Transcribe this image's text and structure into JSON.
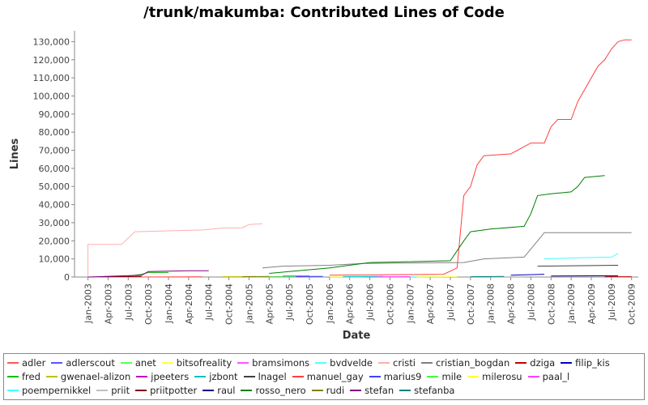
{
  "chart_data": {
    "type": "line",
    "title": "/trunk/makumba: Contributed Lines of Code",
    "x_label": "Date",
    "y_label": "Lines",
    "xlim": [
      "2002-11",
      "2009-11"
    ],
    "xticks": [
      {
        "value": "2003-01",
        "label": "Jan-2003"
      },
      {
        "value": "2003-04",
        "label": "Apr-2003"
      },
      {
        "value": "2003-07",
        "label": "Jul-2003"
      },
      {
        "value": "2003-10",
        "label": "Oct-2003"
      },
      {
        "value": "2004-01",
        "label": "Jan-2004"
      },
      {
        "value": "2004-04",
        "label": "Apr-2004"
      },
      {
        "value": "2004-07",
        "label": "Jul-2004"
      },
      {
        "value": "2004-10",
        "label": "Oct-2004"
      },
      {
        "value": "2005-01",
        "label": "Jan-2005"
      },
      {
        "value": "2005-04",
        "label": "Apr-2005"
      },
      {
        "value": "2005-07",
        "label": "Jul-2005"
      },
      {
        "value": "2005-10",
        "label": "Oct-2005"
      },
      {
        "value": "2006-01",
        "label": "Jan-2006"
      },
      {
        "value": "2006-04",
        "label": "Apr-2006"
      },
      {
        "value": "2006-07",
        "label": "Jul-2006"
      },
      {
        "value": "2006-10",
        "label": "Oct-2006"
      },
      {
        "value": "2007-01",
        "label": "Jan-2007"
      },
      {
        "value": "2007-04",
        "label": "Apr-2007"
      },
      {
        "value": "2007-07",
        "label": "Jul-2007"
      },
      {
        "value": "2007-10",
        "label": "Oct-2007"
      },
      {
        "value": "2008-01",
        "label": "Jan-2008"
      },
      {
        "value": "2008-04",
        "label": "Apr-2008"
      },
      {
        "value": "2008-07",
        "label": "Jul-2008"
      },
      {
        "value": "2008-10",
        "label": "Oct-2008"
      },
      {
        "value": "2009-01",
        "label": "Jan-2009"
      },
      {
        "value": "2009-04",
        "label": "Apr-2009"
      },
      {
        "value": "2009-07",
        "label": "Jul-2009"
      },
      {
        "value": "2009-10",
        "label": "Oct-2009"
      }
    ],
    "ylim": [
      0,
      136000
    ],
    "yticks": [
      0,
      {
        "value": 10000,
        "label": "10,000"
      },
      {
        "value": 20000,
        "label": "20,000"
      },
      {
        "value": 30000,
        "label": "30,000"
      },
      {
        "value": 40000,
        "label": "40,000"
      },
      {
        "value": 50000,
        "label": "50,000"
      },
      {
        "value": 60000,
        "label": "60,000"
      },
      {
        "value": 70000,
        "label": "70,000"
      },
      {
        "value": 80000,
        "label": "80,000"
      },
      {
        "value": 90000,
        "label": "90,000"
      },
      {
        "value": 100000,
        "label": "100,000"
      },
      {
        "value": 110000,
        "label": "110,000"
      },
      {
        "value": 120000,
        "label": "120,000"
      },
      {
        "value": 130000,
        "label": "130,000"
      }
    ],
    "grid": false,
    "legend": "bottom",
    "series": [
      {
        "name": "adler",
        "color": "#ff5555",
        "x": [
          "2003-06",
          "2004-06"
        ],
        "values": [
          0,
          200
        ]
      },
      {
        "name": "adlerscout",
        "color": "#5555ff",
        "x": [
          "2005-06",
          "2005-10"
        ],
        "values": [
          500,
          600
        ]
      },
      {
        "name": "anet",
        "color": "#55ff55",
        "x": [
          "2004-10",
          "2005-03"
        ],
        "values": [
          100,
          200
        ]
      },
      {
        "name": "bitsofreality",
        "color": "#ffff55",
        "x": [
          "2006-01",
          "2006-06"
        ],
        "values": [
          100,
          200
        ]
      },
      {
        "name": "bramsimons",
        "color": "#ff55ff",
        "x": [
          "2006-06",
          "2007-01"
        ],
        "values": [
          100,
          200
        ]
      },
      {
        "name": "bvdvelde",
        "color": "#55ffff",
        "x": [
          "2007-01",
          "2007-06"
        ],
        "values": [
          100,
          200
        ]
      },
      {
        "name": "cristi",
        "color": "#ffafaf",
        "x": [
          "2003-01",
          "2003-01",
          "2003-06",
          "2003-07",
          "2003-08",
          "2004-01",
          "2004-06",
          "2004-09",
          "2004-12",
          "2005-01",
          "2005-03"
        ],
        "values": [
          0,
          18000,
          18000,
          21500,
          25000,
          25500,
          26000,
          27000,
          27200,
          29000,
          29500
        ]
      },
      {
        "name": "cristian_bogdan",
        "color": "#808080",
        "x": [
          "2005-03",
          "2005-06",
          "2006-01",
          "2006-06",
          "2007-09",
          "2007-12",
          "2008-06",
          "2008-08",
          "2008-09",
          "2009-10"
        ],
        "values": [
          5000,
          6000,
          6500,
          7500,
          8000,
          10000,
          11000,
          20000,
          24500,
          24500
        ]
      },
      {
        "name": "dziga",
        "color": "#c00000",
        "x": [
          "2009-06",
          "2009-10"
        ],
        "values": [
          200,
          200
        ]
      },
      {
        "name": "filip_kis",
        "color": "#0000c0",
        "x": [
          "2008-04",
          "2008-09"
        ],
        "values": [
          1000,
          1500
        ]
      },
      {
        "name": "fred",
        "color": "#00c000",
        "x": [
          "2003-07",
          "2003-09",
          "2003-10",
          "2004-01"
        ],
        "values": [
          500,
          1500,
          2500,
          2500
        ]
      },
      {
        "name": "gwenael-alizon",
        "color": "#c0c000",
        "x": [
          "2004-09",
          "2005-02"
        ],
        "values": [
          200,
          300
        ]
      },
      {
        "name": "jpeeters",
        "color": "#c000c0",
        "x": [
          "2005-04",
          "2005-09"
        ],
        "values": [
          200,
          300
        ]
      },
      {
        "name": "jzbont",
        "color": "#00c0c0",
        "x": [
          "2006-03",
          "2006-09"
        ],
        "values": [
          200,
          300
        ]
      },
      {
        "name": "lnagel",
        "color": "#404040",
        "x": [
          "2008-08",
          "2009-08"
        ],
        "values": [
          6000,
          6500
        ]
      },
      {
        "name": "manuel_gay",
        "color": "#ff4040",
        "x": [
          "2006-01",
          "2007-06",
          "2007-08",
          "2007-09",
          "2007-10",
          "2007-11",
          "2007-12",
          "2008-04",
          "2008-06",
          "2008-07",
          "2008-09",
          "2008-10",
          "2008-11",
          "2009-01",
          "2009-02",
          "2009-05",
          "2009-06",
          "2009-07",
          "2009-08",
          "2009-09",
          "2009-10"
        ],
        "values": [
          1000,
          1500,
          5000,
          45000,
          50000,
          62000,
          67000,
          68000,
          72000,
          74000,
          74000,
          83000,
          87000,
          87000,
          97000,
          116500,
          120000,
          126000,
          130000,
          131000,
          131000
        ]
      },
      {
        "name": "marius9",
        "color": "#4040ff",
        "x": [
          "2005-07",
          "2005-12"
        ],
        "values": [
          300,
          300
        ]
      },
      {
        "name": "mile",
        "color": "#40ff40",
        "x": [
          "2005-02",
          "2005-08"
        ],
        "values": [
          100,
          200
        ]
      },
      {
        "name": "milerosu",
        "color": "#ffff40",
        "x": [
          "2007-02",
          "2007-08"
        ],
        "values": [
          100,
          200
        ]
      },
      {
        "name": "paal_l",
        "color": "#ff40ff",
        "x": [
          "2006-08",
          "2007-01"
        ],
        "values": [
          100,
          200
        ]
      },
      {
        "name": "poempernikkel",
        "color": "#40ffff",
        "x": [
          "2008-09",
          "2009-01",
          "2009-07",
          "2009-08"
        ],
        "values": [
          10000,
          10500,
          11000,
          13000
        ]
      },
      {
        "name": "priit",
        "color": "#c0c0c0",
        "x": [
          "2008-01",
          "2008-06"
        ],
        "values": [
          100,
          200
        ]
      },
      {
        "name": "priitpotter",
        "color": "#800000",
        "x": [
          "2003-03",
          "2003-09"
        ],
        "values": [
          200,
          300
        ]
      },
      {
        "name": "raul",
        "color": "#000080",
        "x": [
          "2008-10",
          "2009-08"
        ],
        "values": [
          600,
          700
        ]
      },
      {
        "name": "rosso_nero",
        "color": "#008000",
        "x": [
          "2005-04",
          "2006-01",
          "2006-07",
          "2007-07",
          "2007-09",
          "2007-10",
          "2008-01",
          "2008-06",
          "2008-07",
          "2008-08",
          "2008-10",
          "2009-01",
          "2009-02",
          "2009-03",
          "2009-06"
        ],
        "values": [
          2000,
          5000,
          8000,
          9000,
          20000,
          25000,
          26500,
          28000,
          35000,
          45000,
          46000,
          47000,
          50000,
          55000,
          56000
        ]
      },
      {
        "name": "rudi",
        "color": "#808000",
        "x": [
          "2004-12",
          "2005-04"
        ],
        "values": [
          200,
          300
        ]
      },
      {
        "name": "stefan",
        "color": "#800080",
        "x": [
          "2003-01",
          "2003-09",
          "2003-10",
          "2004-04",
          "2004-07"
        ],
        "values": [
          0,
          1000,
          3000,
          3500,
          3500
        ]
      },
      {
        "name": "stefanba",
        "color": "#008080",
        "x": [
          "2007-10",
          "2008-03"
        ],
        "values": [
          200,
          300
        ]
      }
    ]
  }
}
